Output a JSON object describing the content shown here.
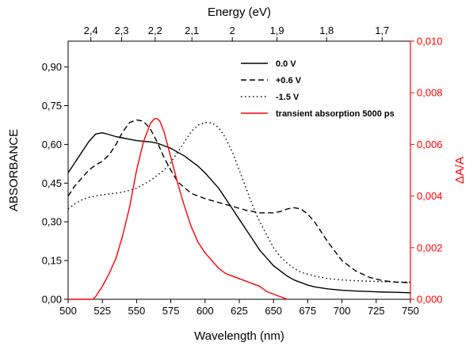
{
  "chart_data": {
    "type": "line",
    "xlabel": "Wavelength (nm)",
    "top_xlabel": "Energy (eV)",
    "ylabel": "ABSORBANCE",
    "y2label": "ΔA/A",
    "xlim": [
      500,
      750
    ],
    "ylim": [
      0,
      1.0
    ],
    "y2lim": [
      0,
      0.01
    ],
    "x_ticks": [
      "500",
      "525",
      "550",
      "575",
      "600",
      "625",
      "650",
      "675",
      "700",
      "725",
      "750"
    ],
    "y_ticks": [
      "0,00",
      "0,15",
      "0,30",
      "0,45",
      "0,60",
      "0,75",
      "0,90"
    ],
    "y2_ticks": [
      "0,000",
      "0,002",
      "0,004",
      "0,006",
      "0,008",
      "0,010"
    ],
    "top_ticks": [
      {
        "energy": 2.4,
        "label": "2,4"
      },
      {
        "energy": 2.3,
        "label": "2,3"
      },
      {
        "energy": 2.2,
        "label": "2,2"
      },
      {
        "energy": 2.1,
        "label": "2,1"
      },
      {
        "energy": 2.0,
        "label": "2"
      },
      {
        "energy": 1.9,
        "label": "1,9"
      },
      {
        "energy": 1.8,
        "label": "1,8"
      },
      {
        "energy": 1.7,
        "label": "1,7"
      }
    ],
    "legend_position": "top-right",
    "series": [
      {
        "name": "0.0 V",
        "axis": "left",
        "color": "#000000",
        "style": "solid",
        "x": [
          500,
          505,
          510,
          515,
          520,
          525,
          530,
          535,
          540,
          545,
          550,
          555,
          560,
          565,
          570,
          575,
          580,
          585,
          590,
          595,
          600,
          605,
          610,
          615,
          620,
          625,
          630,
          635,
          640,
          645,
          650,
          655,
          660,
          665,
          670,
          675,
          680,
          690,
          700,
          710,
          720,
          730,
          740,
          750
        ],
        "y": [
          0.49,
          0.53,
          0.57,
          0.61,
          0.64,
          0.645,
          0.638,
          0.63,
          0.625,
          0.62,
          0.615,
          0.612,
          0.61,
          0.605,
          0.595,
          0.585,
          0.57,
          0.555,
          0.535,
          0.515,
          0.49,
          0.46,
          0.43,
          0.39,
          0.35,
          0.31,
          0.27,
          0.23,
          0.19,
          0.16,
          0.13,
          0.11,
          0.09,
          0.075,
          0.065,
          0.055,
          0.048,
          0.04,
          0.035,
          0.032,
          0.03,
          0.028,
          0.027,
          0.025
        ]
      },
      {
        "name": "+0.6 V",
        "axis": "left",
        "color": "#000000",
        "style": "dashed",
        "x": [
          500,
          505,
          510,
          515,
          520,
          525,
          530,
          535,
          540,
          545,
          550,
          555,
          560,
          565,
          570,
          575,
          580,
          590,
          600,
          610,
          620,
          630,
          640,
          650,
          655,
          660,
          665,
          670,
          675,
          680,
          685,
          690,
          700,
          710,
          720,
          730,
          740,
          750
        ],
        "y": [
          0.4,
          0.44,
          0.47,
          0.5,
          0.52,
          0.535,
          0.56,
          0.6,
          0.65,
          0.685,
          0.695,
          0.69,
          0.66,
          0.61,
          0.55,
          0.5,
          0.455,
          0.41,
          0.39,
          0.375,
          0.36,
          0.345,
          0.335,
          0.335,
          0.34,
          0.35,
          0.355,
          0.35,
          0.33,
          0.3,
          0.26,
          0.22,
          0.15,
          0.11,
          0.085,
          0.072,
          0.066,
          0.065
        ]
      },
      {
        "name": "-1.5 V",
        "axis": "left",
        "color": "#000000",
        "style": "dotted",
        "x": [
          500,
          505,
          510,
          515,
          520,
          525,
          530,
          540,
          550,
          560,
          570,
          575,
          580,
          585,
          590,
          595,
          600,
          605,
          610,
          615,
          620,
          625,
          630,
          635,
          640,
          645,
          650,
          655,
          660,
          665,
          670,
          680,
          690,
          700,
          710,
          720,
          730,
          740,
          750
        ],
        "y": [
          0.35,
          0.37,
          0.385,
          0.395,
          0.4,
          0.405,
          0.408,
          0.415,
          0.43,
          0.46,
          0.5,
          0.53,
          0.57,
          0.61,
          0.65,
          0.675,
          0.685,
          0.683,
          0.665,
          0.625,
          0.57,
          0.5,
          0.43,
          0.36,
          0.3,
          0.25,
          0.2,
          0.165,
          0.14,
          0.12,
          0.105,
          0.09,
          0.08,
          0.075,
          0.072,
          0.07,
          0.068,
          0.067,
          0.066
        ]
      },
      {
        "name": "transient absorption 5000 ps",
        "axis": "right",
        "color": "#ff0000",
        "style": "solid",
        "x": [
          500,
          518,
          520,
          525,
          530,
          535,
          540,
          545,
          550,
          555,
          560,
          563,
          565,
          567,
          570,
          575,
          580,
          585,
          590,
          595,
          600,
          605,
          610,
          615,
          620,
          625,
          630,
          635,
          640,
          645,
          650,
          655,
          660
        ],
        "y": [
          0,
          0,
          0.0001,
          0.0005,
          0.001,
          0.0016,
          0.0025,
          0.0036,
          0.005,
          0.0061,
          0.0068,
          0.007,
          0.007,
          0.0069,
          0.0065,
          0.0055,
          0.0045,
          0.0036,
          0.0028,
          0.0022,
          0.0018,
          0.0015,
          0.0012,
          0.001,
          0.0009,
          0.0008,
          0.0007,
          0.0006,
          0.0005,
          0.0003,
          0.0002,
          0.0001,
          0
        ]
      }
    ]
  }
}
